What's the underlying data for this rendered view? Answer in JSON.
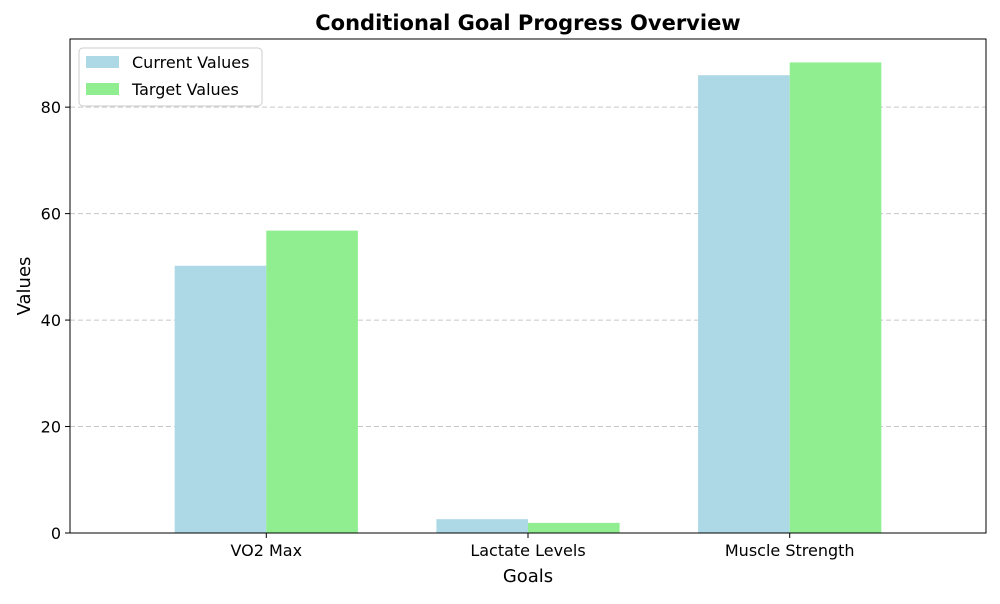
{
  "chart_data": {
    "type": "bar",
    "title": "Conditional Goal Progress Overview",
    "xlabel": "Goals",
    "ylabel": "Values",
    "categories": [
      "VO2 Max",
      "Lactate Levels",
      "Muscle Strength"
    ],
    "series": [
      {
        "name": "Current Values",
        "values": [
          50.2,
          2.6,
          86.0
        ],
        "color": "#add8e6"
      },
      {
        "name": "Target Values",
        "values": [
          56.8,
          1.9,
          88.4
        ],
        "color": "#90ee90"
      }
    ],
    "ylim": [
      0,
      92.8
    ],
    "yticks": [
      0,
      20,
      40,
      60,
      80
    ],
    "grid": "y-dashed",
    "legend_position": "top-left"
  }
}
